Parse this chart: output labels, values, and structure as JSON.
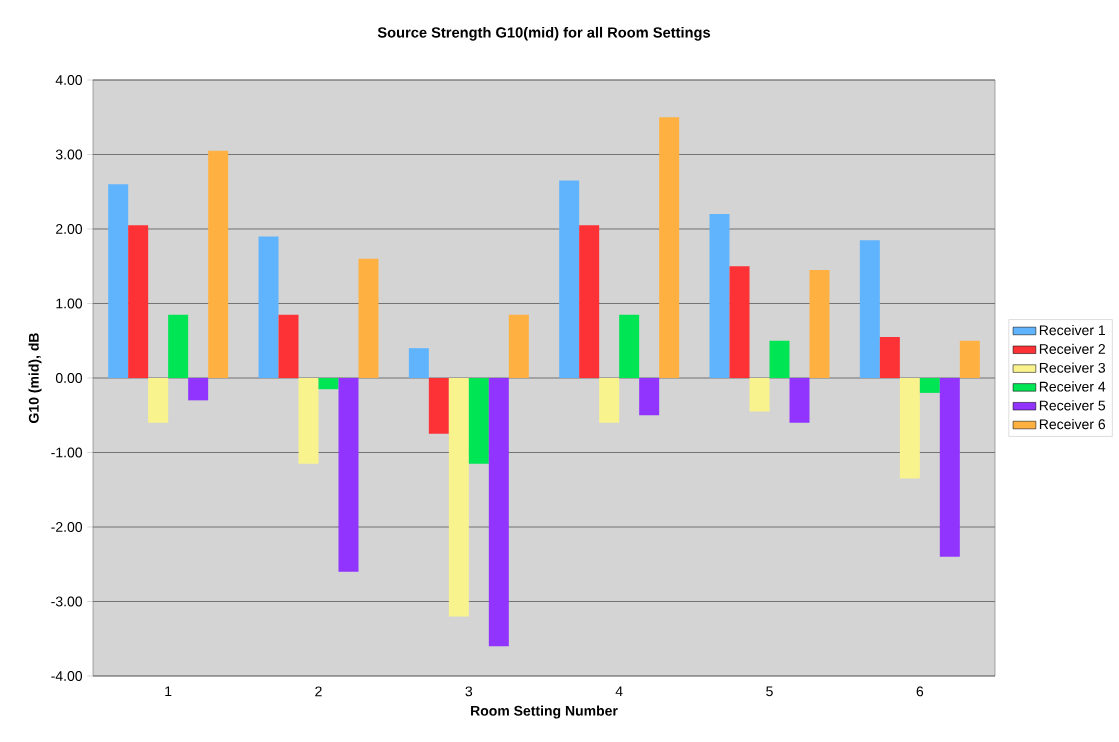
{
  "chart_data": {
    "type": "bar",
    "title": "Source Strength G10(mid) for all Room Settings",
    "xlabel": "Room Setting Number",
    "ylabel": "G10 (mid), dB",
    "categories": [
      "1",
      "2",
      "3",
      "4",
      "5",
      "6"
    ],
    "series": [
      {
        "name": "Receiver 1",
        "color": "#60b4fe",
        "values": [
          2.6,
          1.9,
          0.4,
          2.65,
          2.2,
          1.85
        ]
      },
      {
        "name": "Receiver 2",
        "color": "#fd3236",
        "values": [
          2.05,
          0.85,
          -0.75,
          2.05,
          1.5,
          0.55
        ]
      },
      {
        "name": "Receiver 3",
        "color": "#f9f38e",
        "values": [
          -0.6,
          -1.15,
          -3.2,
          -0.6,
          -0.45,
          -1.35
        ]
      },
      {
        "name": "Receiver 4",
        "color": "#00e554",
        "values": [
          0.85,
          -0.15,
          -1.15,
          0.85,
          0.5,
          -0.2
        ]
      },
      {
        "name": "Receiver 5",
        "color": "#9135fe",
        "values": [
          -0.3,
          -2.6,
          -3.6,
          -0.5,
          -0.6,
          -2.4
        ]
      },
      {
        "name": "Receiver 6",
        "color": "#feb141",
        "values": [
          3.05,
          1.6,
          0.85,
          3.5,
          1.45,
          0.5
        ]
      }
    ],
    "ylim": [
      -4,
      4
    ],
    "yticks": [
      {
        "value": -4,
        "label": "-4.00"
      },
      {
        "value": -3,
        "label": "-3.00"
      },
      {
        "value": -2,
        "label": "-2.00"
      },
      {
        "value": -1,
        "label": "-1.00"
      },
      {
        "value": 0,
        "label": "0.00"
      },
      {
        "value": 1,
        "label": "1.00"
      },
      {
        "value": 2,
        "label": "2.00"
      },
      {
        "value": 3,
        "label": "3.00"
      },
      {
        "value": 4,
        "label": "4.00"
      }
    ],
    "grid": "y",
    "legend": "right"
  }
}
